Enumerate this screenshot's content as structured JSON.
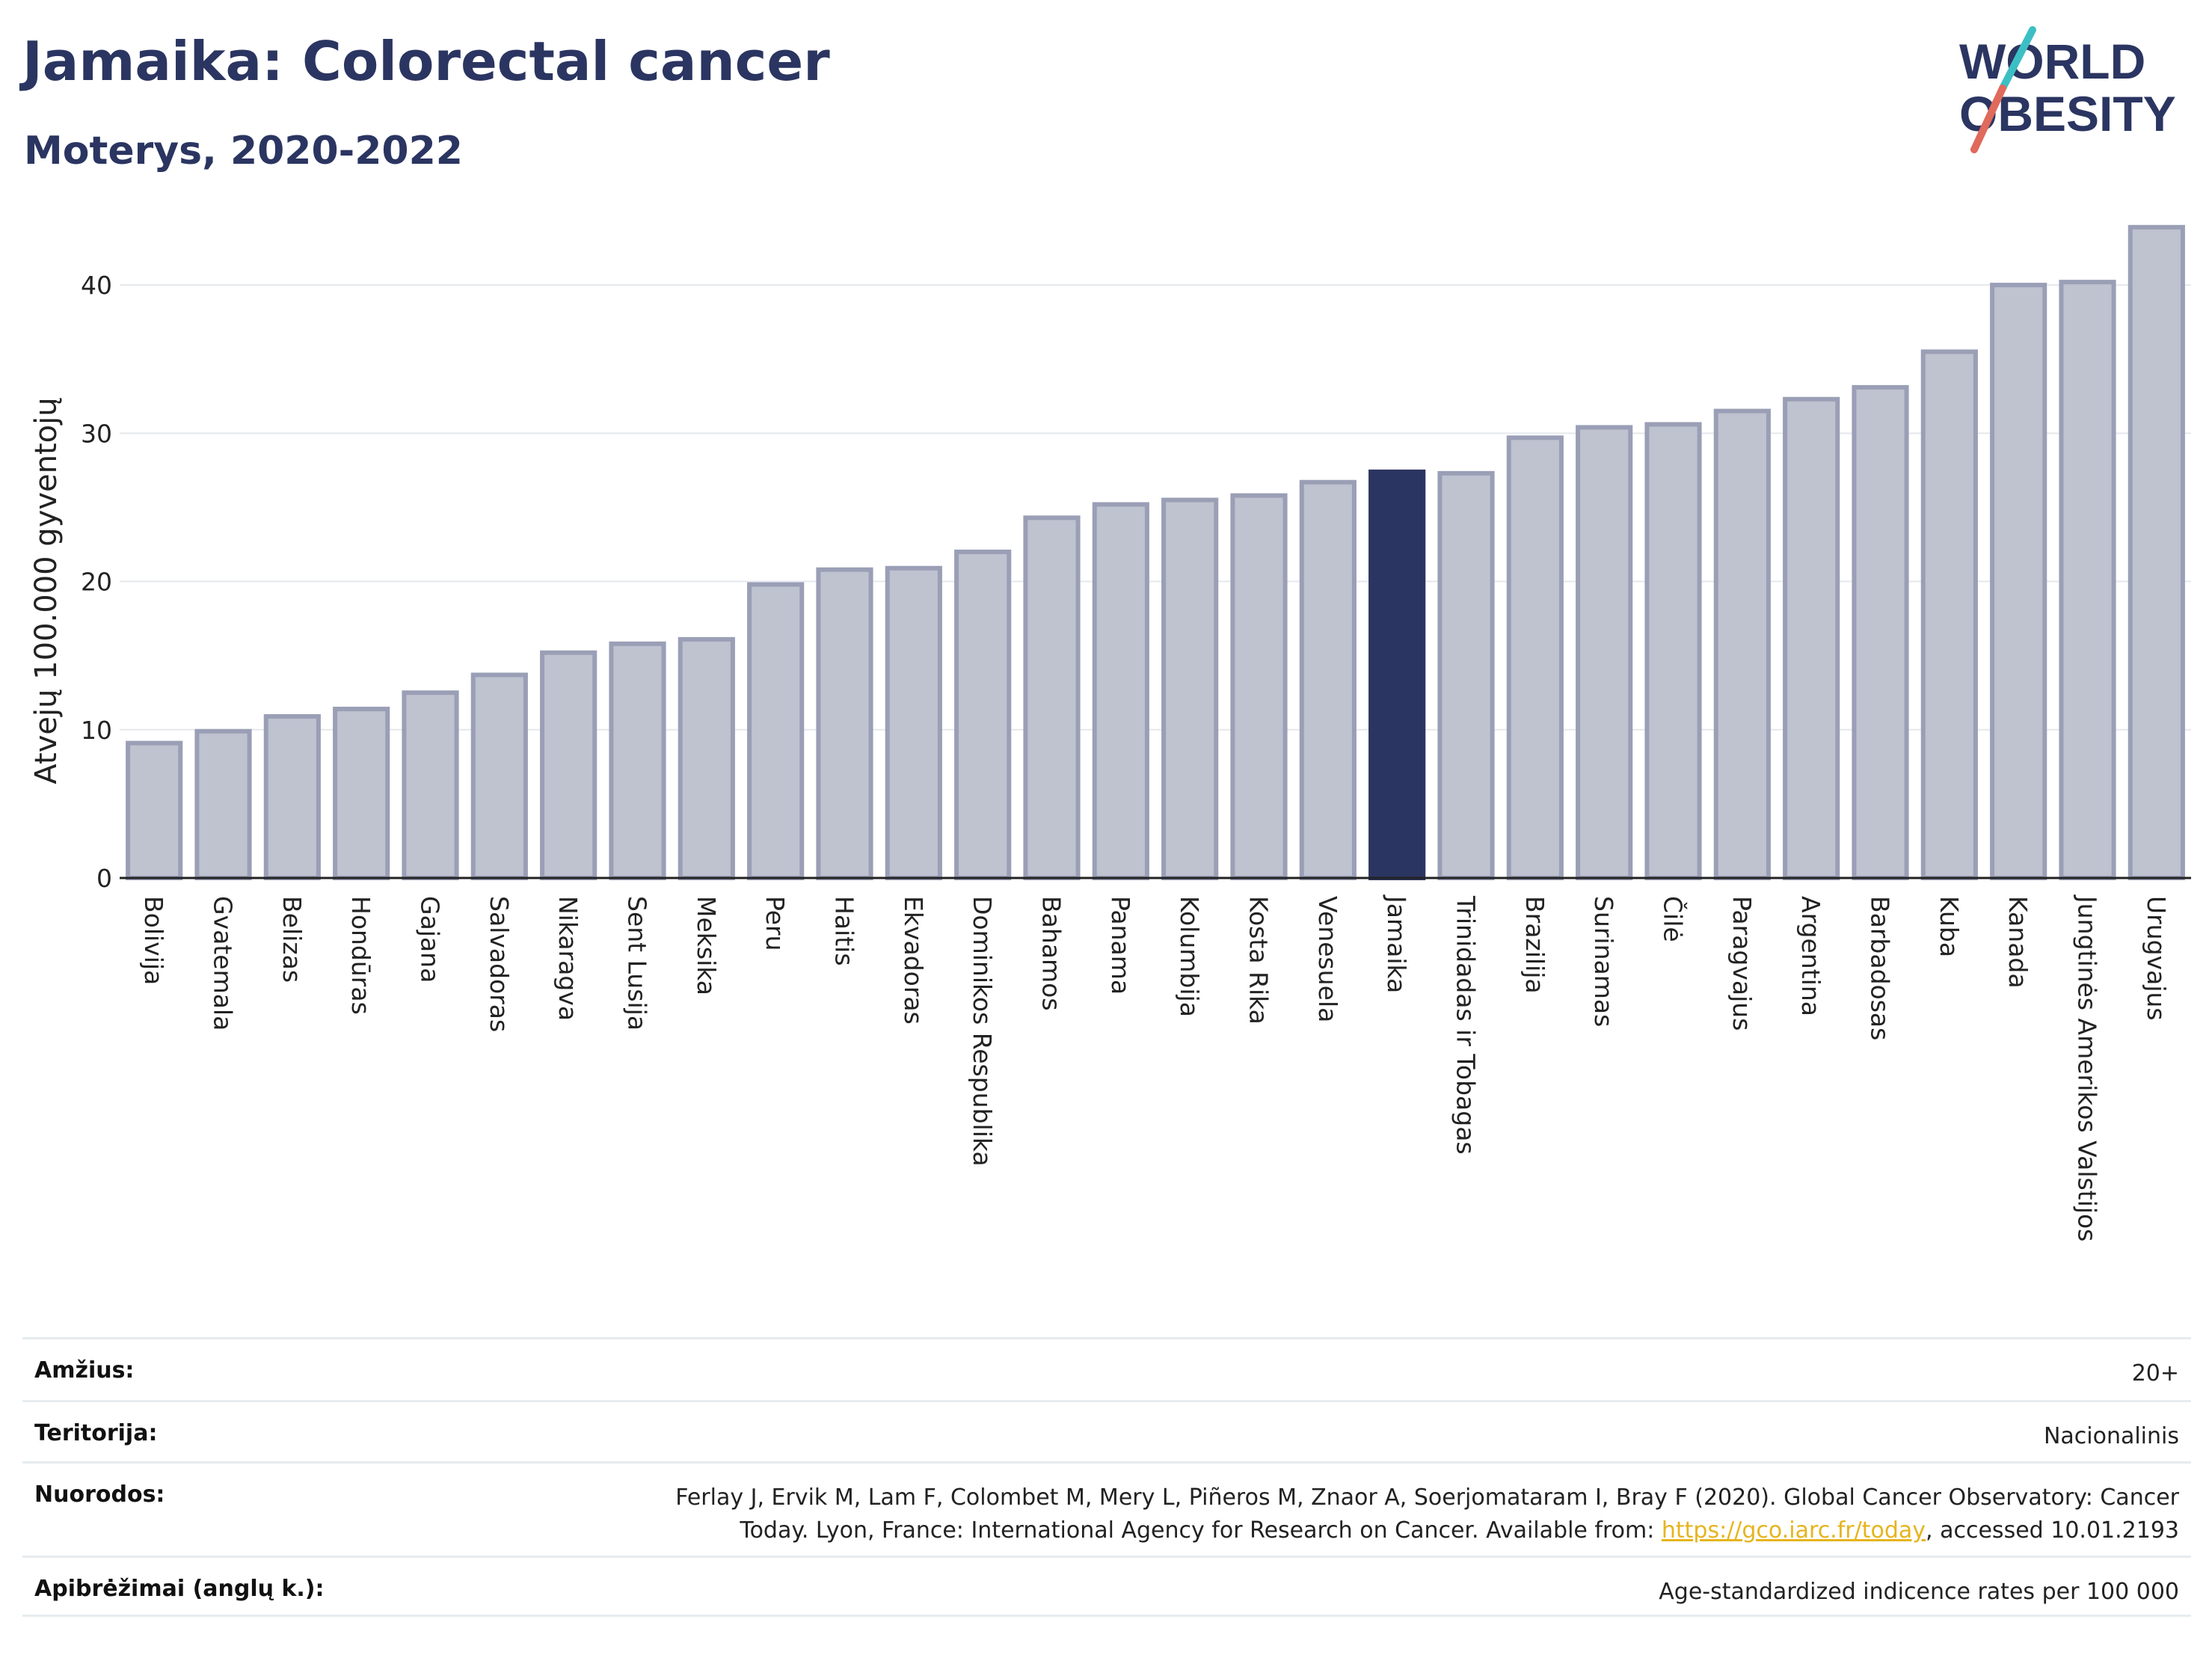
{
  "header": {
    "title": "Jamaika: Colorectal cancer",
    "subtitle": "Moterys, 2020-2022",
    "logo_line1": "WORLD",
    "logo_line2": "OBESITY"
  },
  "colors": {
    "highlight": "#2b3561",
    "bar_fill": "#bfc2cf",
    "bar_stroke": "#9a9fb6",
    "title": "#2b3561",
    "grid": "#e5e8ec",
    "logo_teal": "#3cbfc4",
    "logo_red": "#e06a5b",
    "link": "#e6b41e"
  },
  "chart_data": {
    "type": "bar",
    "title": "Jamaika: Colorectal cancer",
    "subtitle": "Moterys, 2020-2022",
    "xlabel": "",
    "ylabel": "Atvejų 100.000 gyventojų",
    "ylim": [
      0,
      45
    ],
    "yticks": [
      0,
      10,
      20,
      30,
      40
    ],
    "grid": true,
    "highlight": "Jamaika",
    "categories": [
      "Bolivija",
      "Gvatemala",
      "Belizas",
      "Hondūras",
      "Gajana",
      "Salvadoras",
      "Nikaragva",
      "Sent Lusija",
      "Meksika",
      "Peru",
      "Haitis",
      "Ekvadoras",
      "Dominikos Respublika",
      "Bahamos",
      "Panama",
      "Kolumbija",
      "Kosta Rika",
      "Venesuela",
      "Jamaika",
      "Trinidadas ir Tobagas",
      "Brazilija",
      "Surinamas",
      "Čilė",
      "Paragvajus",
      "Argentina",
      "Barbadosas",
      "Kuba",
      "Kanada",
      "Jungtinės Amerikos Valstijos",
      "Urugvajus"
    ],
    "values": [
      9.1,
      9.9,
      10.9,
      11.4,
      12.5,
      13.7,
      15.2,
      15.8,
      16.1,
      19.8,
      20.8,
      20.9,
      22.0,
      24.3,
      25.2,
      25.5,
      25.8,
      26.7,
      27.4,
      27.3,
      29.7,
      30.4,
      30.6,
      31.5,
      32.3,
      33.1,
      35.5,
      40.0,
      40.2,
      43.9
    ]
  },
  "info": {
    "age_label": "Amžius:",
    "age_value": "20+",
    "territory_label": "Teritorija:",
    "territory_value": "Nacionalinis",
    "refs_label": "Nuorodos:",
    "refs_text_1": "Ferlay J, Ervik M, Lam F, Colombet M, Mery L, Piñeros M, Znaor A, Soerjomataram I, Bray F (2020). Global Cancer Observatory: Cancer",
    "refs_text_2": "Today. Lyon, France: International Agency for Research on Cancer. Available from: ",
    "refs_link": "https://gco.iarc.fr/today",
    "refs_text_3": ", accessed 10.01.2193",
    "def_label": "Apibrėžimai (anglų k.):",
    "def_value": "Age-standardized indicence rates per 100 000"
  }
}
